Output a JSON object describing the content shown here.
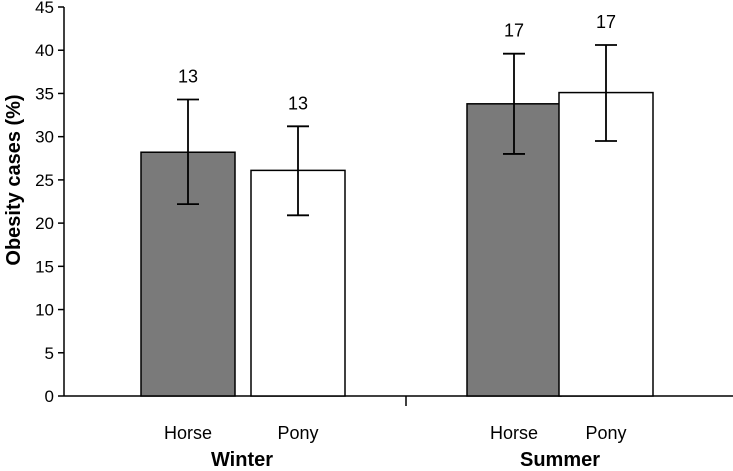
{
  "chart_data": {
    "type": "bar",
    "ylabel": "Obesity cases (%)",
    "ylim": [
      0,
      45
    ],
    "yticks": [
      0,
      5,
      10,
      15,
      20,
      25,
      30,
      35,
      40,
      45
    ],
    "grid": false,
    "groups": [
      {
        "label": "Winter",
        "bars": [
          {
            "category": "Horse",
            "value": 28.2,
            "error_low": 22.2,
            "error_high": 34.3,
            "n_label": "13",
            "fill": "#7a7a7a"
          },
          {
            "category": "Pony",
            "value": 26.1,
            "error_low": 20.9,
            "error_high": 31.2,
            "n_label": "13",
            "fill": "#ffffff"
          }
        ]
      },
      {
        "label": "Summer",
        "bars": [
          {
            "category": "Horse",
            "value": 33.8,
            "error_low": 28.0,
            "error_high": 39.6,
            "n_label": "17",
            "fill": "#7a7a7a"
          },
          {
            "category": "Pony",
            "value": 35.1,
            "error_low": 29.5,
            "error_high": 40.6,
            "n_label": "17",
            "fill": "#ffffff"
          }
        ]
      }
    ]
  }
}
